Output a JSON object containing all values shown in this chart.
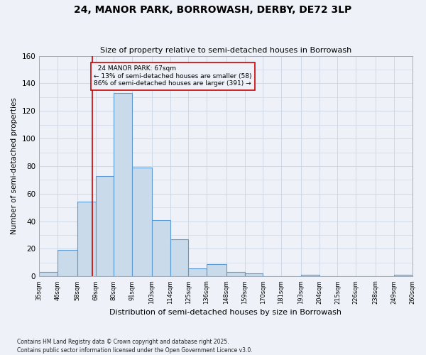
{
  "title": "24, MANOR PARK, BORROWASH, DERBY, DE72 3LP",
  "subtitle": "Size of property relative to semi-detached houses in Borrowash",
  "xlabel": "Distribution of semi-detached houses by size in Borrowash",
  "ylabel": "Number of semi-detached properties",
  "footnote": "Contains HM Land Registry data © Crown copyright and database right 2025.\nContains public sector information licensed under the Open Government Licence v3.0.",
  "property_size": 67,
  "property_label": "24 MANOR PARK: 67sqm",
  "smaller_pct": 13,
  "smaller_count": 58,
  "larger_pct": 86,
  "larger_count": 391,
  "bar_color": "#c9daea",
  "bar_edge_color": "#5b9bd5",
  "bar_edge_width": 0.8,
  "vline_color": "#cc0000",
  "annotation_box_color": "#cc0000",
  "grid_color": "#d0d8e4",
  "background_color": "#eef2f8",
  "bins": [
    35,
    46,
    58,
    69,
    80,
    91,
    103,
    114,
    125,
    136,
    148,
    159,
    170,
    181,
    193,
    204,
    215,
    226,
    238,
    249,
    260
  ],
  "bin_labels": [
    "35sqm",
    "46sqm",
    "58sqm",
    "69sqm",
    "80sqm",
    "91sqm",
    "103sqm",
    "114sqm",
    "125sqm",
    "136sqm",
    "148sqm",
    "159sqm",
    "170sqm",
    "181sqm",
    "193sqm",
    "204sqm",
    "215sqm",
    "226sqm",
    "238sqm",
    "249sqm",
    "260sqm"
  ],
  "counts": [
    3,
    19,
    54,
    73,
    133,
    79,
    41,
    27,
    6,
    9,
    3,
    2,
    0,
    0,
    1,
    0,
    0,
    0,
    0,
    1
  ],
  "ylim": [
    0,
    160
  ]
}
